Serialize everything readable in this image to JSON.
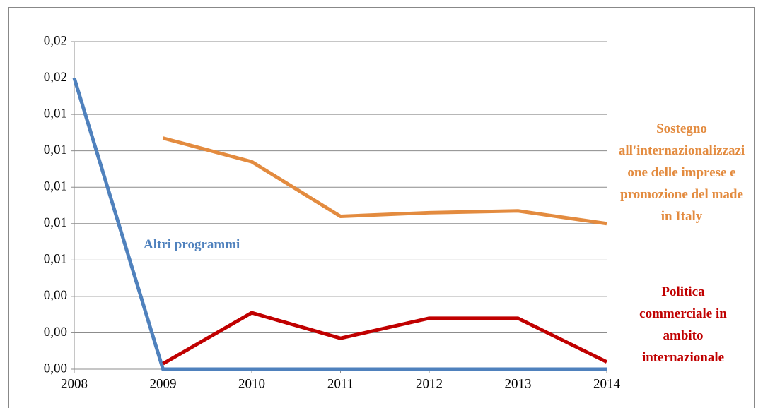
{
  "chart_data": {
    "type": "line",
    "x": [
      2008,
      2009,
      2010,
      2011,
      2012,
      2013,
      2014
    ],
    "xlim": [
      2008,
      2014
    ],
    "xticks": [
      2008,
      2009,
      2010,
      2011,
      2012,
      2013,
      2014
    ],
    "ylim": [
      0,
      0.018
    ],
    "yticks": [
      {
        "value": 0,
        "label": "0,00"
      },
      {
        "value": 0.002,
        "label": "0,00"
      },
      {
        "value": 0.004,
        "label": "0,00"
      },
      {
        "value": 0.006,
        "label": "0,01"
      },
      {
        "value": 0.008,
        "label": "0,01"
      },
      {
        "value": 0.01,
        "label": "0,01"
      },
      {
        "value": 0.012,
        "label": "0,01"
      },
      {
        "value": 0.014,
        "label": "0,01"
      },
      {
        "value": 0.016,
        "label": "0,02"
      },
      {
        "value": 0.018,
        "label": "0,02"
      }
    ],
    "grid": true,
    "series": [
      {
        "name": "Altri programmi",
        "color": "#4f81bd",
        "values": [
          0.016,
          0,
          0,
          0,
          0,
          0,
          0
        ]
      },
      {
        "name": "Sostegno all'internazionalizzazione delle imprese e promozione del made in Italy",
        "color": "#e38b3f",
        "values": [
          null,
          0.0127,
          0.0114,
          0.0084,
          0.0086,
          0.0087,
          0.008
        ]
      },
      {
        "name": "Politica commerciale in ambito internazionale",
        "color": "#c00000",
        "values": [
          null,
          0.0003,
          0.0031,
          0.0017,
          0.0028,
          0.0028,
          0.0004
        ]
      }
    ]
  }
}
